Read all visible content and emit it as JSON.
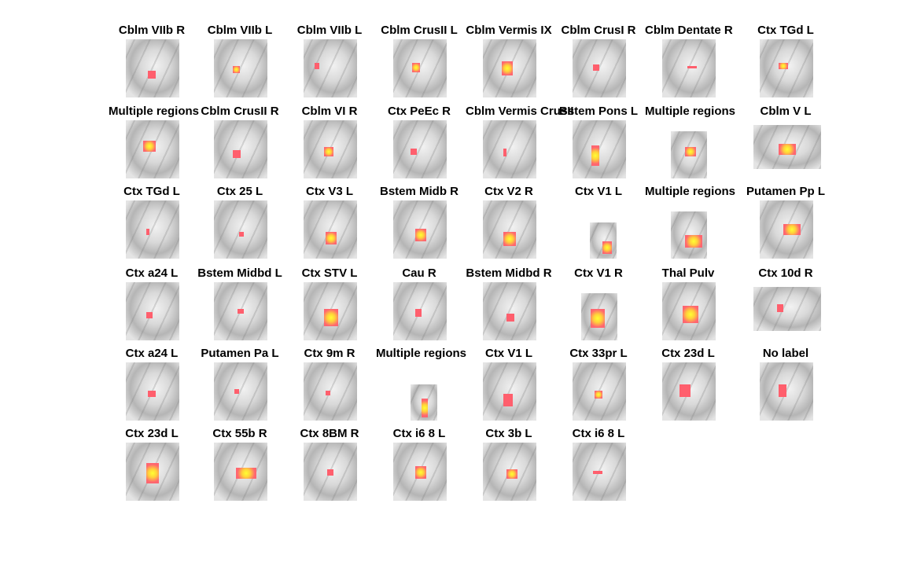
{
  "panels": [
    {
      "title": "Cblm VIIb R",
      "hot": false
    },
    {
      "title": "Cblm VIIb L",
      "hot": true
    },
    {
      "title": "Cblm VIIb L",
      "hot": false
    },
    {
      "title": "Cblm CrusII L",
      "hot": true
    },
    {
      "title": "Cblm Vermis IX",
      "hot": true
    },
    {
      "title": "Cblm CrusI R",
      "hot": false
    },
    {
      "title": "Cblm Dentate R",
      "hot": false
    },
    {
      "title": "Ctx TGd L",
      "hot": true
    },
    {
      "title": "Multiple regions",
      "hot": true
    },
    {
      "title": "Cblm CrusII R",
      "hot": false
    },
    {
      "title": "Cblm VI R",
      "hot": true
    },
    {
      "title": "Ctx PeEc R",
      "hot": false
    },
    {
      "title": "Cblm Vermis CrusII",
      "hot": false
    },
    {
      "title": "Bstem Pons L",
      "hot": true
    },
    {
      "title": "Multiple regions",
      "hot": true
    },
    {
      "title": "Cblm V L",
      "hot": true
    },
    {
      "title": "Ctx TGd L",
      "hot": false
    },
    {
      "title": "Ctx 25 L",
      "hot": false
    },
    {
      "title": "Ctx V3 L",
      "hot": true
    },
    {
      "title": "Bstem Midb R",
      "hot": true
    },
    {
      "title": "Ctx V2 R",
      "hot": true
    },
    {
      "title": "Ctx V1 L",
      "hot": true
    },
    {
      "title": "Multiple regions",
      "hot": true
    },
    {
      "title": "Putamen Pp L",
      "hot": true
    },
    {
      "title": "Ctx a24 L",
      "hot": false
    },
    {
      "title": "Bstem Midbd L",
      "hot": false
    },
    {
      "title": "Ctx STV L",
      "hot": true
    },
    {
      "title": "Cau R",
      "hot": false
    },
    {
      "title": "Bstem Midbd R",
      "hot": false
    },
    {
      "title": "Ctx V1 R",
      "hot": true
    },
    {
      "title": "Thal Pulv",
      "hot": true
    },
    {
      "title": "Ctx 10d R",
      "hot": false
    },
    {
      "title": "Ctx a24 L",
      "hot": false
    },
    {
      "title": "Putamen Pa L",
      "hot": false
    },
    {
      "title": "Ctx 9m R",
      "hot": false
    },
    {
      "title": "Multiple regions",
      "hot": true
    },
    {
      "title": "Ctx V1 L",
      "hot": false
    },
    {
      "title": "Ctx 33pr L",
      "hot": true
    },
    {
      "title": "Ctx 23d L",
      "hot": false
    },
    {
      "title": "No label",
      "hot": false
    },
    {
      "title": "Ctx 23d L",
      "hot": true
    },
    {
      "title": "Ctx 55b R",
      "hot": true
    },
    {
      "title": "Ctx 8BM R",
      "hot": false
    },
    {
      "title": "Ctx i6 8 L",
      "hot": true
    },
    {
      "title": "Ctx 3b L",
      "hot": true
    },
    {
      "title": "Ctx i6 8 L",
      "hot": false
    }
  ],
  "colors": {
    "activation": "#ff5f6d",
    "peak": "#ffff33",
    "background": "#ffffff"
  }
}
